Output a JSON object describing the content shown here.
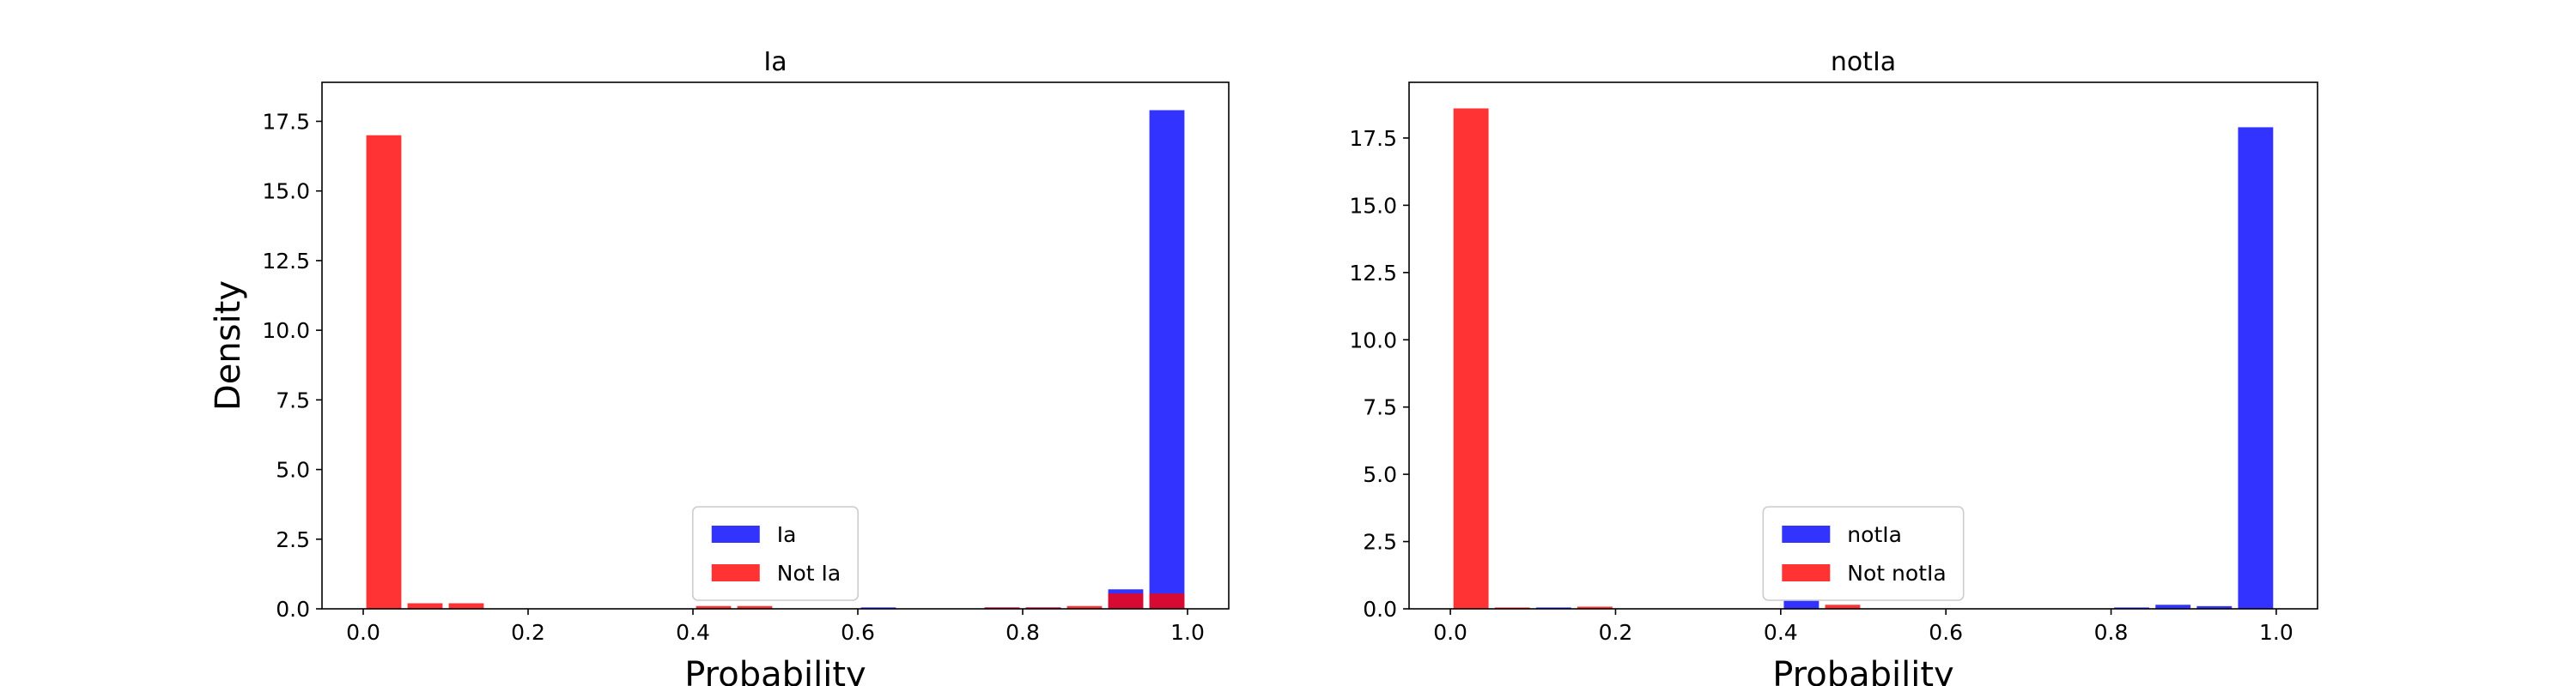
{
  "chart_data": [
    {
      "type": "histogram",
      "title": "Ia",
      "xlabel": "Probability",
      "ylabel": "Density",
      "bins": [
        0,
        0.05,
        0.1,
        0.15,
        0.2,
        0.25,
        0.3,
        0.35,
        0.4,
        0.45,
        0.5,
        0.55,
        0.6,
        0.65,
        0.7,
        0.75,
        0.8,
        0.85,
        0.9,
        0.95,
        1.0
      ],
      "series": [
        {
          "name": "Ia",
          "color": "#0000ff",
          "values": [
            0,
            0,
            0,
            0,
            0,
            0,
            0,
            0,
            0,
            0,
            0,
            0,
            0.05,
            0,
            0,
            0.05,
            0.05,
            0,
            0.7,
            17.9
          ]
        },
        {
          "name": "Not Ia",
          "color": "#ff0000",
          "values": [
            17.0,
            0.2,
            0.2,
            0,
            0,
            0,
            0,
            0,
            0.1,
            0.1,
            0,
            0,
            0,
            0,
            0,
            0.05,
            0.05,
            0.1,
            0.55,
            0.55
          ]
        }
      ],
      "alpha": 0.8,
      "legend": "lower center",
      "xlim": [
        -0.05,
        1.05
      ],
      "xticks": [
        {
          "value": 0,
          "label": "0.0"
        },
        0.2,
        0.4,
        0.6,
        0.8,
        {
          "value": 1,
          "label": "1.0"
        }
      ],
      "ylim": [
        0,
        18.9
      ],
      "yticks": [
        {
          "value": 0,
          "label": "0.0"
        },
        2.5,
        {
          "value": 5,
          "label": "5.0"
        },
        7.5,
        {
          "value": 10,
          "label": "10.0"
        },
        12.5,
        {
          "value": 15,
          "label": "15.0"
        },
        17.5
      ]
    },
    {
      "type": "histogram",
      "title": "notIa",
      "xlabel": "Probability",
      "bins": [
        0,
        0.05,
        0.1,
        0.15,
        0.2,
        0.25,
        0.3,
        0.35,
        0.4,
        0.45,
        0.5,
        0.55,
        0.6,
        0.65,
        0.7,
        0.75,
        0.8,
        0.85,
        0.9,
        0.95,
        1.0
      ],
      "series": [
        {
          "name": "notIa",
          "color": "#0000ff",
          "values": [
            0,
            0,
            0.05,
            0,
            0,
            0,
            0,
            0,
            0.3,
            0,
            0,
            0,
            0,
            0,
            0,
            0,
            0.05,
            0.15,
            0.1,
            17.9
          ]
        },
        {
          "name": "Not notIa",
          "color": "#ff0000",
          "values": [
            18.6,
            0.05,
            0,
            0.08,
            0,
            0,
            0,
            0,
            0,
            0.15,
            0,
            0,
            0,
            0,
            0,
            0,
            0,
            0,
            0,
            0
          ]
        }
      ],
      "alpha": 0.8,
      "legend": "lower center",
      "xlim": [
        -0.05,
        1.05
      ],
      "xticks": [
        {
          "value": 0,
          "label": "0.0"
        },
        0.2,
        0.4,
        0.6,
        0.8,
        {
          "value": 1,
          "label": "1.0"
        }
      ],
      "ylim": [
        0,
        19.57
      ],
      "yticks": [
        {
          "value": 0,
          "label": "0.0"
        },
        2.5,
        {
          "value": 5,
          "label": "5.0"
        },
        7.5,
        {
          "value": 10,
          "label": "10.0"
        },
        12.5,
        {
          "value": 15,
          "label": "15.0"
        },
        17.5
      ]
    }
  ]
}
